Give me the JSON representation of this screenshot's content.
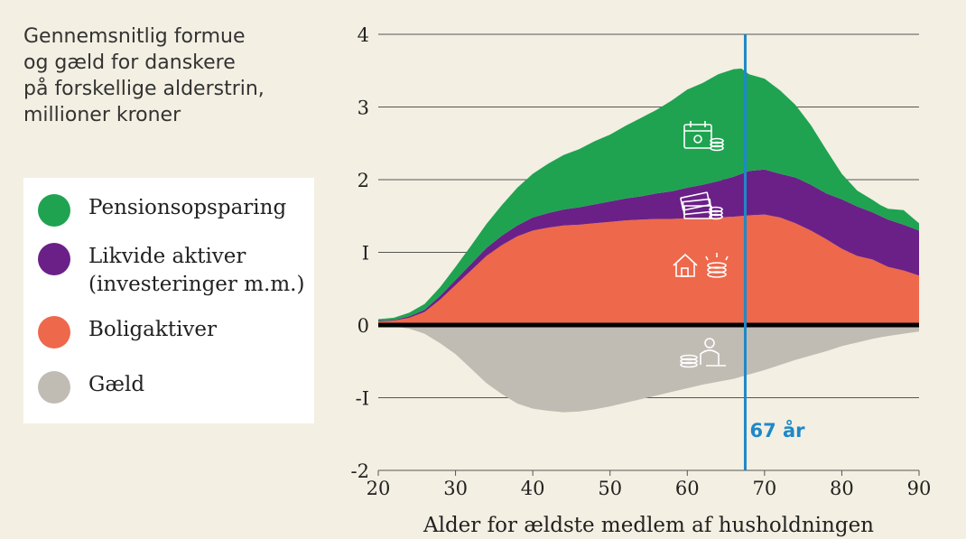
{
  "title_lines": [
    "Gennemsnitlig formue",
    "og gæld for danskere",
    "på forskellige alderstrin,",
    "millioner kroner"
  ],
  "legend": [
    {
      "lines": [
        "Pensionsopsparing"
      ],
      "color": "#1fa351"
    },
    {
      "lines": [
        "Likvide aktiver",
        "(investeringer m.m.)"
      ],
      "color": "#6b2088"
    },
    {
      "lines": [
        "Boligaktiver"
      ],
      "color": "#ee684b"
    },
    {
      "lines": [
        "Gæld"
      ],
      "color": "#c0bcb4"
    }
  ],
  "chart_data": {
    "type": "area",
    "xlabel": "Alder for ældste medlem af husholdningen",
    "ylabel": "",
    "xlim": [
      20,
      90
    ],
    "ylim": [
      -2,
      4
    ],
    "xticks": [
      20,
      30,
      40,
      50,
      60,
      70,
      80,
      90
    ],
    "yticks": [
      4,
      3,
      2,
      1,
      0,
      -1,
      -2
    ],
    "ytick_labels": [
      "4",
      "3",
      "2",
      "I",
      "0",
      "-I",
      "-2"
    ],
    "grid": true,
    "stacked": true,
    "x": [
      20,
      22,
      24,
      26,
      28,
      30,
      32,
      34,
      36,
      38,
      40,
      42,
      44,
      46,
      48,
      50,
      52,
      54,
      56,
      58,
      60,
      62,
      64,
      66,
      67,
      68,
      70,
      72,
      74,
      76,
      78,
      80,
      82,
      84,
      85,
      86,
      88,
      90
    ],
    "series": [
      {
        "name": "Boligaktiver",
        "color": "#ee684b",
        "values": [
          0.05,
          0.06,
          0.1,
          0.18,
          0.35,
          0.55,
          0.75,
          0.95,
          1.1,
          1.22,
          1.3,
          1.34,
          1.37,
          1.38,
          1.4,
          1.42,
          1.44,
          1.45,
          1.46,
          1.46,
          1.47,
          1.47,
          1.48,
          1.49,
          1.5,
          1.51,
          1.52,
          1.48,
          1.4,
          1.3,
          1.18,
          1.05,
          0.95,
          0.9,
          0.85,
          0.8,
          0.75,
          0.68
        ]
      },
      {
        "name": "Likvide aktiver (investeringer m.m.)",
        "color": "#6b2088",
        "values": [
          0.01,
          0.01,
          0.02,
          0.03,
          0.05,
          0.07,
          0.09,
          0.11,
          0.13,
          0.15,
          0.18,
          0.2,
          0.22,
          0.24,
          0.26,
          0.28,
          0.3,
          0.32,
          0.35,
          0.38,
          0.42,
          0.46,
          0.5,
          0.55,
          0.58,
          0.61,
          0.62,
          0.6,
          0.63,
          0.63,
          0.63,
          0.68,
          0.68,
          0.65,
          0.65,
          0.65,
          0.63,
          0.62
        ]
      },
      {
        "name": "Pensionsopsparing",
        "color": "#1fa351",
        "values": [
          0.02,
          0.03,
          0.05,
          0.08,
          0.12,
          0.18,
          0.25,
          0.33,
          0.42,
          0.52,
          0.6,
          0.68,
          0.75,
          0.8,
          0.87,
          0.92,
          1.0,
          1.08,
          1.15,
          1.25,
          1.35,
          1.4,
          1.47,
          1.48,
          1.45,
          1.33,
          1.25,
          1.15,
          1.0,
          0.82,
          0.6,
          0.35,
          0.22,
          0.17,
          0.15,
          0.15,
          0.2,
          0.1
        ]
      },
      {
        "name": "Gæld",
        "color": "#c0bcb4",
        "values": [
          0,
          -0.02,
          -0.05,
          -0.12,
          -0.25,
          -0.4,
          -0.6,
          -0.8,
          -0.95,
          -1.08,
          -1.15,
          -1.18,
          -1.2,
          -1.19,
          -1.16,
          -1.12,
          -1.07,
          -1.02,
          -0.97,
          -0.92,
          -0.87,
          -0.82,
          -0.78,
          -0.74,
          -0.71,
          -0.68,
          -0.62,
          -0.55,
          -0.48,
          -0.42,
          -0.36,
          -0.29,
          -0.24,
          -0.19,
          -0.17,
          -0.15,
          -0.12,
          -0.09
        ]
      }
    ],
    "annotation": {
      "x": 67.5,
      "label": "67 år",
      "color": "#1f88c8"
    }
  }
}
